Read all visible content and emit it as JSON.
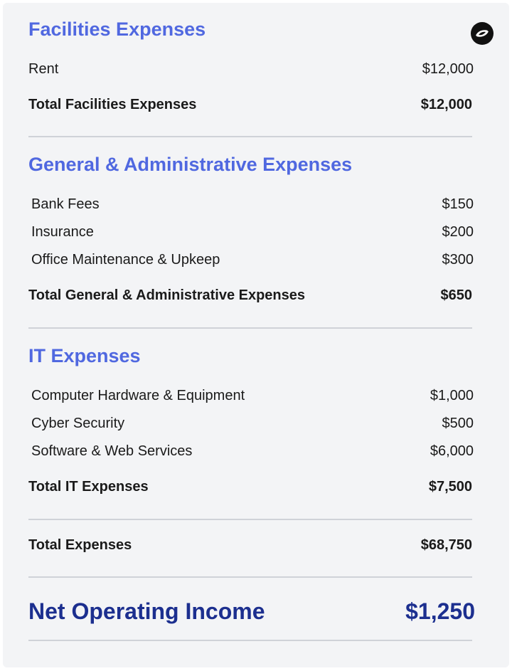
{
  "facilities": {
    "title": "Facilities Expenses",
    "items": [
      {
        "label": "Rent",
        "value": "$12,000"
      }
    ],
    "total_label": "Total Facilities Expenses",
    "total_value": "$12,000"
  },
  "general_admin": {
    "title": "General & Administrative Expenses",
    "items": [
      {
        "label": "Bank Fees",
        "value": "$150"
      },
      {
        "label": "Insurance",
        "value": "$200"
      },
      {
        "label": "Office Maintenance & Upkeep",
        "value": "$300"
      }
    ],
    "total_label": "Total General & Administrative Expenses",
    "total_value": "$650"
  },
  "it": {
    "title": "IT Expenses",
    "items": [
      {
        "label": "Computer Hardware & Equipment",
        "value": "$1,000"
      },
      {
        "label": "Cyber Security",
        "value": "$500"
      },
      {
        "label": "Software & Web Services",
        "value": "$6,000"
      }
    ],
    "total_label": "Total IT Expenses",
    "total_value": "$7,500"
  },
  "summary": {
    "total_expenses_label": "Total Expenses",
    "total_expenses_value": "$68,750",
    "net_label": "Net Operating Income",
    "net_value": "$1,250"
  },
  "logo_icon": "brand-logo-icon",
  "colors": {
    "section_title": "#5068e0",
    "net_income": "#1c2f8f",
    "card_background": "#f3f4f6"
  }
}
